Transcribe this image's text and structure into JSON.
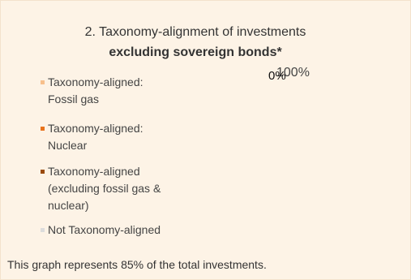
{
  "header": {
    "title": "2. Taxonomy-alignment of investments",
    "subtitle": "excluding sovereign bonds*"
  },
  "legend": [
    {
      "lines": [
        "Taxonomy-aligned:",
        "Fossil gas"
      ],
      "color": "#f7c08c"
    },
    {
      "lines": [
        "Taxonomy-aligned:",
        "Nuclear"
      ],
      "color": "#e8731c"
    },
    {
      "lines": [
        "Taxonomy-aligned",
        "(excluding fossil gas &",
        "nuclear)"
      ],
      "color": "#9a4a0c"
    },
    {
      "lines": [
        "Not Taxonomy-aligned"
      ],
      "color": "#dcdcdc"
    }
  ],
  "graph_labels": [
    "100%",
    "0%"
  ],
  "footnote": "This graph represents 85% of the total investments."
}
